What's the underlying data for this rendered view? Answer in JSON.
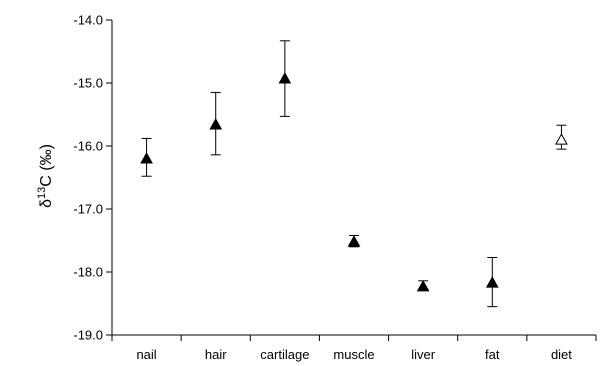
{
  "chart_data": {
    "type": "scatter",
    "title": "",
    "xlabel": "",
    "ylabel": {
      "prefix": "δ",
      "superscript": "13",
      "main": "C (‰)"
    },
    "categories": [
      "nail",
      "hair",
      "cartilage",
      "muscle",
      "liver",
      "fat",
      "diet"
    ],
    "ylim": [
      -19.0,
      -14.0
    ],
    "y_ticks": [
      -14.0,
      -15.0,
      -16.0,
      -17.0,
      -18.0,
      -19.0
    ],
    "y_tick_labels": [
      "-14.0",
      "-15.0",
      "-16.0",
      "-17.0",
      "-18.0",
      "-19.0"
    ],
    "y_inverted": true,
    "grid": false,
    "legend": "none",
    "points": [
      {
        "category": "nail",
        "y": -16.2,
        "err_low": -16.48,
        "err_high": -15.88,
        "marker": "filled-triangle"
      },
      {
        "category": "hair",
        "y": -15.66,
        "err_low": -16.14,
        "err_high": -15.15,
        "marker": "filled-triangle"
      },
      {
        "category": "cartilage",
        "y": -14.93,
        "err_low": -15.53,
        "err_high": -14.33,
        "marker": "filled-triangle"
      },
      {
        "category": "muscle",
        "y": -17.52,
        "err_low": -17.6,
        "err_high": -17.42,
        "marker": "filled-triangle"
      },
      {
        "category": "liver",
        "y": -18.23,
        "err_low": -18.27,
        "err_high": -18.14,
        "marker": "filled-triangle"
      },
      {
        "category": "fat",
        "y": -18.17,
        "err_low": -18.55,
        "err_high": -17.77,
        "marker": "filled-triangle"
      },
      {
        "category": "diet",
        "y": -15.9,
        "err_low": -16.05,
        "err_high": -15.67,
        "marker": "open-triangle"
      }
    ],
    "colors": {
      "marker": "#000000",
      "axis": "#000000",
      "background": "#ffffff"
    }
  }
}
